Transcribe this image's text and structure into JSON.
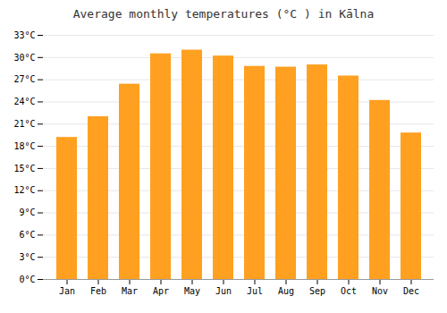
{
  "chart_data": {
    "type": "bar",
    "title": "Average monthly temperatures (°C ) in Kālna",
    "categories": [
      "Jan",
      "Feb",
      "Mar",
      "Apr",
      "May",
      "Jun",
      "Jul",
      "Aug",
      "Sep",
      "Oct",
      "Nov",
      "Dec"
    ],
    "values": [
      19.2,
      22.0,
      26.4,
      30.5,
      31.0,
      30.2,
      28.8,
      28.7,
      29.0,
      27.5,
      24.2,
      19.8
    ],
    "color": "#FFA020",
    "ylim": [
      0,
      33
    ],
    "yticks": [
      {
        "value": 0,
        "label": "0°C"
      },
      {
        "value": 3,
        "label": "3°C"
      },
      {
        "value": 6,
        "label": "6°C"
      },
      {
        "value": 9,
        "label": "9°C"
      },
      {
        "value": 12,
        "label": "12°C"
      },
      {
        "value": 15,
        "label": "15°C"
      },
      {
        "value": 18,
        "label": "18°C"
      },
      {
        "value": 21,
        "label": "21°C"
      },
      {
        "value": 24,
        "label": "24°C"
      },
      {
        "value": 27,
        "label": "27°C"
      },
      {
        "value": 30,
        "label": "30°C"
      },
      {
        "value": 33,
        "label": "33°C"
      }
    ],
    "grid": true
  }
}
